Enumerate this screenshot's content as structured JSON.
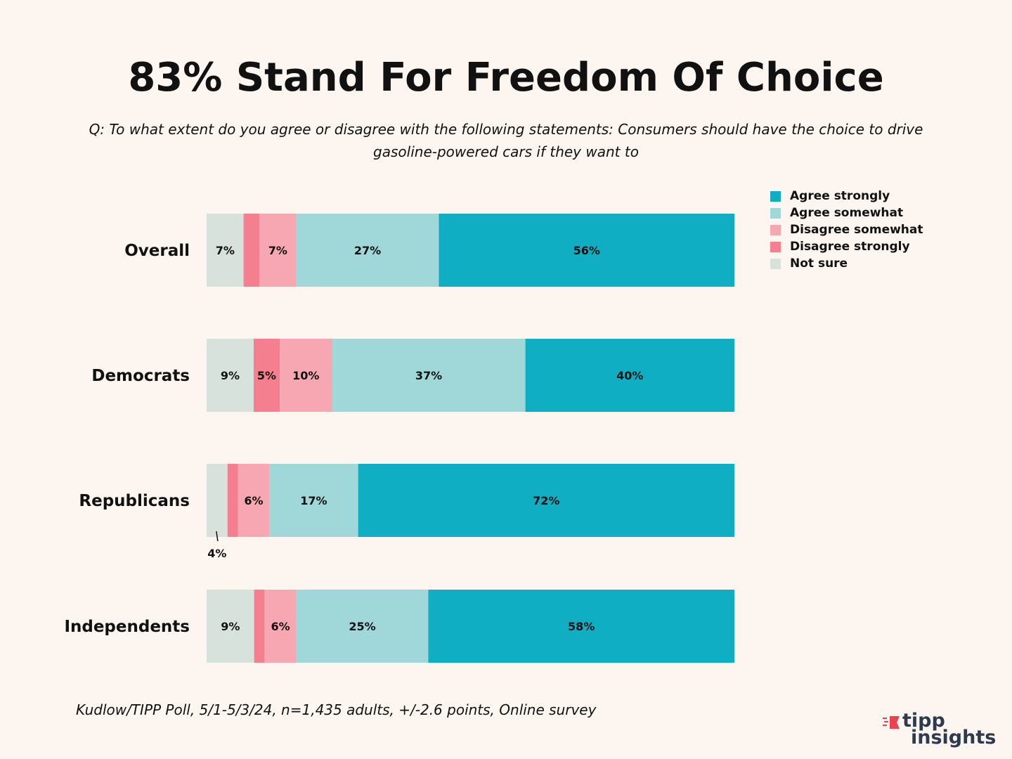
{
  "title": "83% Stand For Freedom Of Choice",
  "subtitle": "Q: To what extent do you agree or disagree with the following statements: Consumers should have the choice to drive gasoline-powered cars if they want to",
  "footnote": "Kudlow/TIPP Poll, 5/1-5/3/24, n=1,435 adults, +/-2.6 points, Online survey",
  "logo": {
    "line1": "tipp",
    "line2": "insights"
  },
  "colors": {
    "agree_strongly": "#10aec2",
    "agree_somewhat": "#a0d7d8",
    "disagree_somewhat": "#f6a7b1",
    "disagree_strongly": "#f4808f",
    "not_sure": "#d8e2dd"
  },
  "legend": [
    {
      "label": "Agree strongly",
      "color": "#10aec2"
    },
    {
      "label": "Agree somewhat",
      "color": "#a0d7d8"
    },
    {
      "label": "Disagree somewhat",
      "color": "#f6a7b1"
    },
    {
      "label": "Disagree strongly",
      "color": "#f4808f"
    },
    {
      "label": "Not sure",
      "color": "#d8e2dd"
    }
  ],
  "chart_data": {
    "type": "bar",
    "orientation": "horizontal",
    "stacked": true,
    "title": "83% Stand For Freedom Of Choice",
    "categories": [
      "Overall",
      "Democrats",
      "Republicans",
      "Independents"
    ],
    "series": [
      {
        "name": "Not sure",
        "values": [
          7,
          9,
          4,
          9
        ],
        "labels": [
          "7%",
          "9%",
          "4%",
          "9%"
        ]
      },
      {
        "name": "Disagree strongly",
        "values": [
          3,
          5,
          2,
          2
        ],
        "labels": [
          "",
          "5%",
          "",
          ""
        ]
      },
      {
        "name": "Disagree somewhat",
        "values": [
          7,
          10,
          6,
          6
        ],
        "labels": [
          "7%",
          "10%",
          "6%",
          "6%"
        ]
      },
      {
        "name": "Agree somewhat",
        "values": [
          27,
          37,
          17,
          25
        ],
        "labels": [
          "27%",
          "37%",
          "17%",
          "25%"
        ]
      },
      {
        "name": "Agree strongly",
        "values": [
          56,
          40,
          72,
          58
        ],
        "labels": [
          "56%",
          "40%",
          "72%",
          "58%"
        ]
      }
    ],
    "callouts": [
      {
        "category": "Republicans",
        "series": "Not sure",
        "text": "4%"
      }
    ],
    "xlim": [
      0,
      100
    ],
    "legend_position": "top-right"
  }
}
